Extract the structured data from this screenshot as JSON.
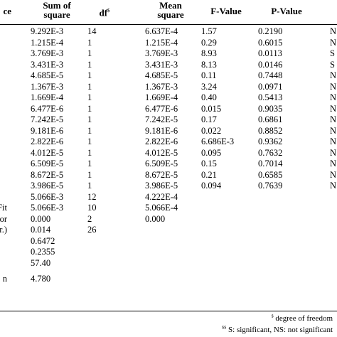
{
  "headers": {
    "source": "ce",
    "sum_of_square_l1": "Sum of",
    "sum_of_square_l2": "square",
    "df": "df",
    "df_sup": "$",
    "mean_square_l1": "Mean",
    "mean_square_l2": "square",
    "f_value": "F-Value",
    "p_value": "P-Value"
  },
  "rows": [
    {
      "source": "",
      "ss": "9.292E-3",
      "df": "14",
      "ms": "6.637E-4",
      "f": "1.57",
      "p": "0.2190",
      "sig": "N"
    },
    {
      "source": "",
      "ss": "1.215E-4",
      "df": "1",
      "ms": "1.215E-4",
      "f": "0.29",
      "p": "0.6015",
      "sig": "N"
    },
    {
      "source": "",
      "ss": "3.769E-3",
      "df": "1",
      "ms": "3.769E-3",
      "f": "8.93",
      "p": "0.0113",
      "sig": "S"
    },
    {
      "source": "",
      "ss": "3.431E-3",
      "df": "1",
      "ms": "3.431E-3",
      "f": "8.13",
      "p": "0.0146",
      "sig": "S"
    },
    {
      "source": "",
      "ss": "4.685E-5",
      "df": "1",
      "ms": "4.685E-5",
      "f": "0.11",
      "p": "0.7448",
      "sig": "N"
    },
    {
      "source": "",
      "ss": "1.367E-3",
      "df": "1",
      "ms": "1.367E-3",
      "f": "3.24",
      "p": "0.0971",
      "sig": "N"
    },
    {
      "source": "",
      "ss": "1.669E-4",
      "df": "1",
      "ms": "1.669E-4",
      "f": "0.40",
      "p": "0.5413",
      "sig": "N"
    },
    {
      "source": "",
      "ss": "6.477E-6",
      "df": "1",
      "ms": "6.477E-6",
      "f": "0.015",
      "p": "0.9035",
      "sig": "N"
    },
    {
      "source": "",
      "ss": "7.242E-5",
      "df": "1",
      "ms": "7.242E-5",
      "f": "0.17",
      "p": "0.6861",
      "sig": "N"
    },
    {
      "source": "",
      "ss": "9.181E-6",
      "df": "1",
      "ms": "9.181E-6",
      "f": "0.022",
      "p": "0.8852",
      "sig": "N"
    },
    {
      "source": "",
      "ss": "2.822E-6",
      "df": "1",
      "ms": "2.822E-6",
      "f": "6.686E-3",
      "p": "0.9362",
      "sig": "N"
    },
    {
      "source": "",
      "ss": "4.012E-5",
      "df": "1",
      "ms": "4.012E-5",
      "f": "0.095",
      "p": "0.7632",
      "sig": "N"
    },
    {
      "source": "",
      "ss": "6.509E-5",
      "df": "1",
      "ms": "6.509E-5",
      "f": "0.15",
      "p": "0.7014",
      "sig": "N"
    },
    {
      "source": "",
      "ss": "8.672E-5",
      "df": "1",
      "ms": "8.672E-5",
      "f": "0.21",
      "p": "0.6585",
      "sig": "N"
    },
    {
      "source": "",
      "ss": "3.986E-5",
      "df": "1",
      "ms": "3.986E-5",
      "f": "0.094",
      "p": "0.7639",
      "sig": "N"
    },
    {
      "source": "",
      "ss": "5.066E-3",
      "df": "12",
      "ms": "4.222E-4",
      "f": "",
      "p": "",
      "sig": ""
    },
    {
      "source": "Fit",
      "ss": "5.066E-3",
      "df": "10",
      "ms": "5.066E-4",
      "f": "",
      "p": "",
      "sig": ""
    },
    {
      "source": "or",
      "ss": "0.000",
      "df": "2",
      "ms": "0.000",
      "f": "",
      "p": "",
      "sig": ""
    },
    {
      "source": "orr.)",
      "ss": "0.014",
      "df": "26",
      "ms": "",
      "f": "",
      "p": "",
      "sig": ""
    },
    {
      "source": "",
      "ss": "0.6472",
      "df": "",
      "ms": "",
      "f": "",
      "p": "",
      "sig": ""
    },
    {
      "source": "",
      "ss": "0.2355",
      "df": "",
      "ms": "",
      "f": "",
      "p": "",
      "sig": ""
    },
    {
      "source": "",
      "ss": "57.40",
      "df": "",
      "ms": "",
      "f": "",
      "p": "",
      "sig": ""
    },
    {
      "source": "n",
      "ss": "4.780",
      "df": "",
      "ms": "",
      "f": "",
      "p": "",
      "sig": ""
    }
  ],
  "footnotes": {
    "f1_sup": "$",
    "f1_text": " degree of freedom",
    "f2_sup": "$$",
    "f2_text": " S: significant, NS: not significant"
  }
}
